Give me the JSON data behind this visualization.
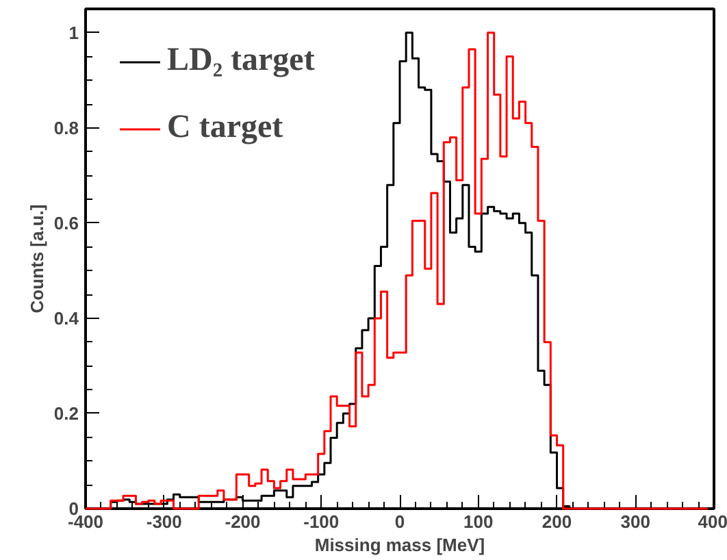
{
  "chart_data": {
    "type": "step",
    "xlabel": "Missing mass [MeV]",
    "ylabel": "Counts [a.u.]",
    "x": [
      -400,
      -392,
      -384,
      -376,
      -368,
      -360,
      -352,
      -344,
      -336,
      -328,
      -320,
      -312,
      -304,
      -296,
      -288,
      -280,
      -272,
      -264,
      -256,
      -248,
      -240,
      -232,
      -224,
      -216,
      -208,
      -200,
      -192,
      -184,
      -176,
      -168,
      -160,
      -152,
      -144,
      -136,
      -128,
      -120,
      -112,
      -104,
      -96,
      -88,
      -80,
      -72,
      -64,
      -56,
      -48,
      -40,
      -32,
      -24,
      -16,
      -8,
      0,
      8,
      16,
      24,
      32,
      40,
      48,
      56,
      64,
      72,
      80,
      88,
      96,
      104,
      112,
      120,
      128,
      136,
      144,
      152,
      160,
      168,
      176,
      184,
      192,
      200,
      208,
      216,
      224,
      232,
      240,
      248,
      256,
      264,
      272,
      280,
      288,
      296,
      304,
      312,
      320,
      328,
      336,
      344,
      352,
      360,
      368,
      376,
      384,
      392
    ],
    "series": [
      {
        "name": "LD₂ target",
        "color": "#000000",
        "values": [
          0,
          0,
          0,
          0,
          0.014,
          0.017,
          0.019,
          0.014,
          0.01,
          0.01,
          0.01,
          0.01,
          0.01,
          0.019,
          0.03,
          0.024,
          0.024,
          0.024,
          0.014,
          0.014,
          0.014,
          0.014,
          0.019,
          0.019,
          0.024,
          0.017,
          0.017,
          0.017,
          0.027,
          0.027,
          0.038,
          0.038,
          0.024,
          0.048,
          0.048,
          0.048,
          0.056,
          0.072,
          0.096,
          0.149,
          0.18,
          0.2,
          0.22,
          0.337,
          0.375,
          0.4,
          0.51,
          0.55,
          0.68,
          0.81,
          0.94,
          1.0,
          0.946,
          0.885,
          0.88,
          0.745,
          0.73,
          0.687,
          0.58,
          0.61,
          0.68,
          0.55,
          0.54,
          0.62,
          0.634,
          0.625,
          0.62,
          0.61,
          0.62,
          0.6,
          0.58,
          0.49,
          0.29,
          0.26,
          0.118,
          0.043,
          0.005,
          0,
          0,
          0,
          0,
          0,
          0,
          0,
          0,
          0,
          0,
          0,
          0,
          0,
          0,
          0,
          0,
          0,
          0,
          0,
          0,
          0,
          0,
          0
        ]
      },
      {
        "name": "C target",
        "color": "#ff0000",
        "values": [
          0,
          0,
          0,
          0,
          0.017,
          0.017,
          0.027,
          0.027,
          0.01,
          0.014,
          0.017,
          0.01,
          0.017,
          0.017,
          0,
          0,
          0,
          0,
          0.027,
          0.027,
          0.027,
          0.038,
          0.019,
          0.019,
          0.072,
          0.072,
          0.048,
          0.053,
          0.082,
          0.058,
          0.043,
          0.058,
          0.082,
          0.062,
          0.062,
          0.072,
          0.072,
          0.115,
          0.163,
          0.236,
          0.216,
          0.216,
          0.173,
          0.328,
          0.236,
          0.26,
          0.4,
          0.456,
          0.317,
          0.328,
          0.328,
          0.49,
          0.605,
          0.605,
          0.504,
          0.663,
          0.43,
          0.77,
          0.78,
          0.69,
          0.885,
          0.965,
          0.62,
          0.735,
          1.0,
          0.87,
          0.74,
          0.95,
          0.82,
          0.855,
          0.81,
          0.76,
          0.605,
          0.35,
          0.154,
          0.133,
          0,
          0,
          0,
          0,
          0,
          0,
          0,
          0,
          0,
          0,
          0,
          0,
          0,
          0,
          0,
          0,
          0,
          0,
          0,
          0,
          0,
          0,
          0,
          0
        ]
      }
    ],
    "xlim": [
      -400,
      400
    ],
    "ylim": [
      0,
      1.05
    ],
    "xticks": [
      -400,
      -300,
      -200,
      -100,
      0,
      100,
      200,
      300,
      400
    ],
    "yticks": [
      0,
      0.2,
      0.4,
      0.6,
      0.8,
      1
    ],
    "legend": "top left"
  }
}
